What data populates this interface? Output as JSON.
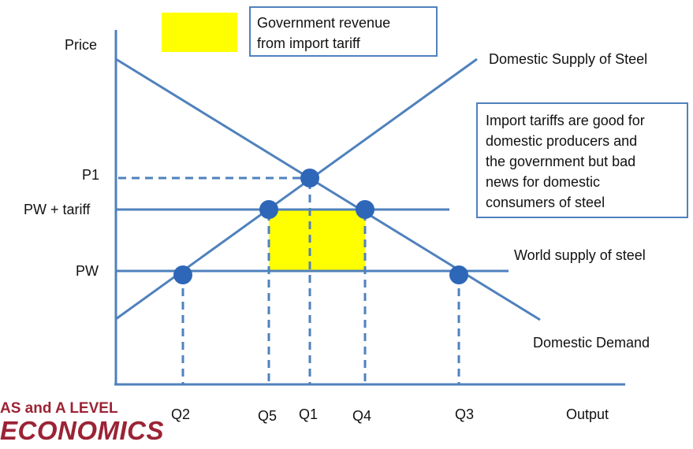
{
  "legend": {
    "text_line1": "Government revenue",
    "text_line2": "from import tariff",
    "swatch_color": "#ffff00"
  },
  "axes": {
    "y_label": "Price",
    "x_label": "Output"
  },
  "price_labels": {
    "p1": "P1",
    "pw_tariff": "PW + tariff",
    "pw": "PW"
  },
  "quantity_labels": {
    "q2": "Q2",
    "q5": "Q5",
    "q1": "Q1",
    "q4": "Q4",
    "q3": "Q3"
  },
  "curve_labels": {
    "supply": "Domestic Supply of Steel",
    "world_supply": "World supply of steel",
    "demand": "Domestic Demand"
  },
  "note": {
    "lines": [
      "Import tariffs are good for",
      "domestic producers and",
      "the government but bad",
      "news for domestic",
      "consumers of steel"
    ]
  },
  "branding": {
    "line1": "AS and A LEVEL",
    "line2": "ECONOMICS"
  },
  "colors": {
    "line": "#4f81bd",
    "point": "#2e66b8",
    "highlight": "#ffff00",
    "brand": "#9b2335"
  }
}
